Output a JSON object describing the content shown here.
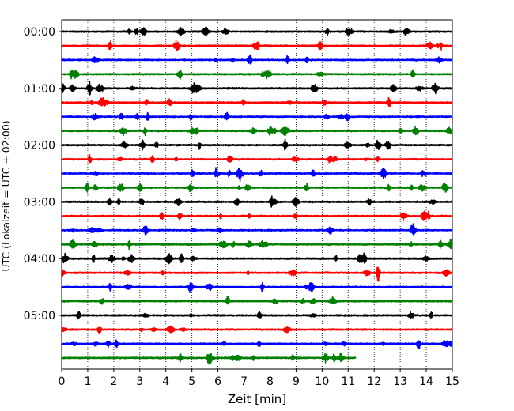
{
  "chart_data": {
    "type": "line",
    "title": "",
    "xlabel": "Zeit  [min]",
    "ylabel": "UTC (Lokalzeit = UTC + 02:00)",
    "xlim": [
      0,
      15
    ],
    "x_ticks": [
      "0",
      "1",
      "2",
      "3",
      "4",
      "5",
      "6",
      "7",
      "8",
      "9",
      "10",
      "11",
      "12",
      "13",
      "14",
      "15"
    ],
    "y_tick_labels": [
      "00:00",
      "01:00",
      "02:00",
      "03:00",
      "04:00",
      "05:00"
    ],
    "y_tick_trace_index": [
      0,
      4,
      8,
      12,
      16,
      20
    ],
    "grid": "vertical dotted at each minute",
    "trace_minutes": 15,
    "color_cycle": [
      "#000000",
      "#ff0000",
      "#0000ff",
      "#008000"
    ],
    "series": [
      {
        "name": "00:00",
        "color": "#000000",
        "end_min": 15
      },
      {
        "name": "00:15",
        "color": "#ff0000",
        "end_min": 15
      },
      {
        "name": "00:30",
        "color": "#0000ff",
        "end_min": 15
      },
      {
        "name": "00:45",
        "color": "#008000",
        "end_min": 15
      },
      {
        "name": "01:00",
        "color": "#000000",
        "end_min": 15
      },
      {
        "name": "01:15",
        "color": "#ff0000",
        "end_min": 15
      },
      {
        "name": "01:30",
        "color": "#0000ff",
        "end_min": 15
      },
      {
        "name": "01:45",
        "color": "#008000",
        "end_min": 15
      },
      {
        "name": "02:00",
        "color": "#000000",
        "end_min": 15
      },
      {
        "name": "02:15",
        "color": "#ff0000",
        "end_min": 15
      },
      {
        "name": "02:30",
        "color": "#0000ff",
        "end_min": 15
      },
      {
        "name": "02:45",
        "color": "#008000",
        "end_min": 15
      },
      {
        "name": "03:00",
        "color": "#000000",
        "end_min": 15
      },
      {
        "name": "03:15",
        "color": "#ff0000",
        "end_min": 15
      },
      {
        "name": "03:30",
        "color": "#0000ff",
        "end_min": 15
      },
      {
        "name": "03:45",
        "color": "#008000",
        "end_min": 15
      },
      {
        "name": "04:00",
        "color": "#000000",
        "end_min": 15
      },
      {
        "name": "04:15",
        "color": "#ff0000",
        "end_min": 15
      },
      {
        "name": "04:30",
        "color": "#0000ff",
        "end_min": 15
      },
      {
        "name": "04:45",
        "color": "#008000",
        "end_min": 15
      },
      {
        "name": "05:00",
        "color": "#000000",
        "end_min": 15
      },
      {
        "name": "05:15",
        "color": "#ff0000",
        "end_min": 15
      },
      {
        "name": "05:30",
        "color": "#0000ff",
        "end_min": 15
      },
      {
        "name": "05:45",
        "color": "#008000",
        "end_min": 11.3
      }
    ]
  }
}
